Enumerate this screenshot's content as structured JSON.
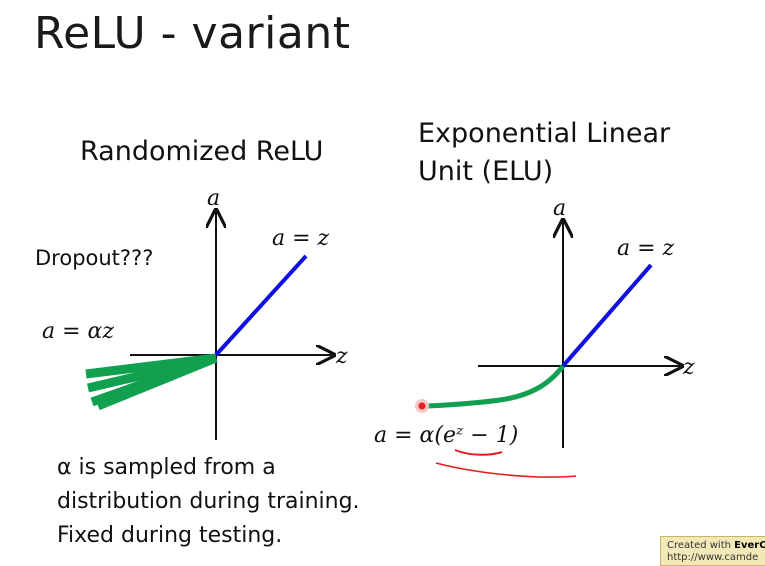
{
  "slide": {
    "title": "ReLU - variant"
  },
  "left_panel": {
    "heading": "Randomized ReLU",
    "side_note": "Dropout???",
    "axis_y_label": "a",
    "axis_x_label": "z",
    "positive_label": "a = z",
    "negative_label": "a = αz",
    "caption_lines": [
      "α is sampled from a",
      "distribution during training.",
      "Fixed during testing."
    ]
  },
  "right_panel": {
    "heading_lines": [
      "Exponential Linear",
      "Unit (ELU)"
    ],
    "axis_y_label": "a",
    "axis_x_label": "z",
    "positive_label": "a = z",
    "negative_label": "a = α(eᶻ − 1)"
  },
  "watermark": {
    "line1_prefix": "Created with ",
    "line1_brand": "EverC",
    "line2": "http://www.camde"
  },
  "colors": {
    "positive_line": "#1010e0",
    "negative_line": "#10a050",
    "annotation": "#e0201f",
    "pointer": "#e0201f"
  }
}
